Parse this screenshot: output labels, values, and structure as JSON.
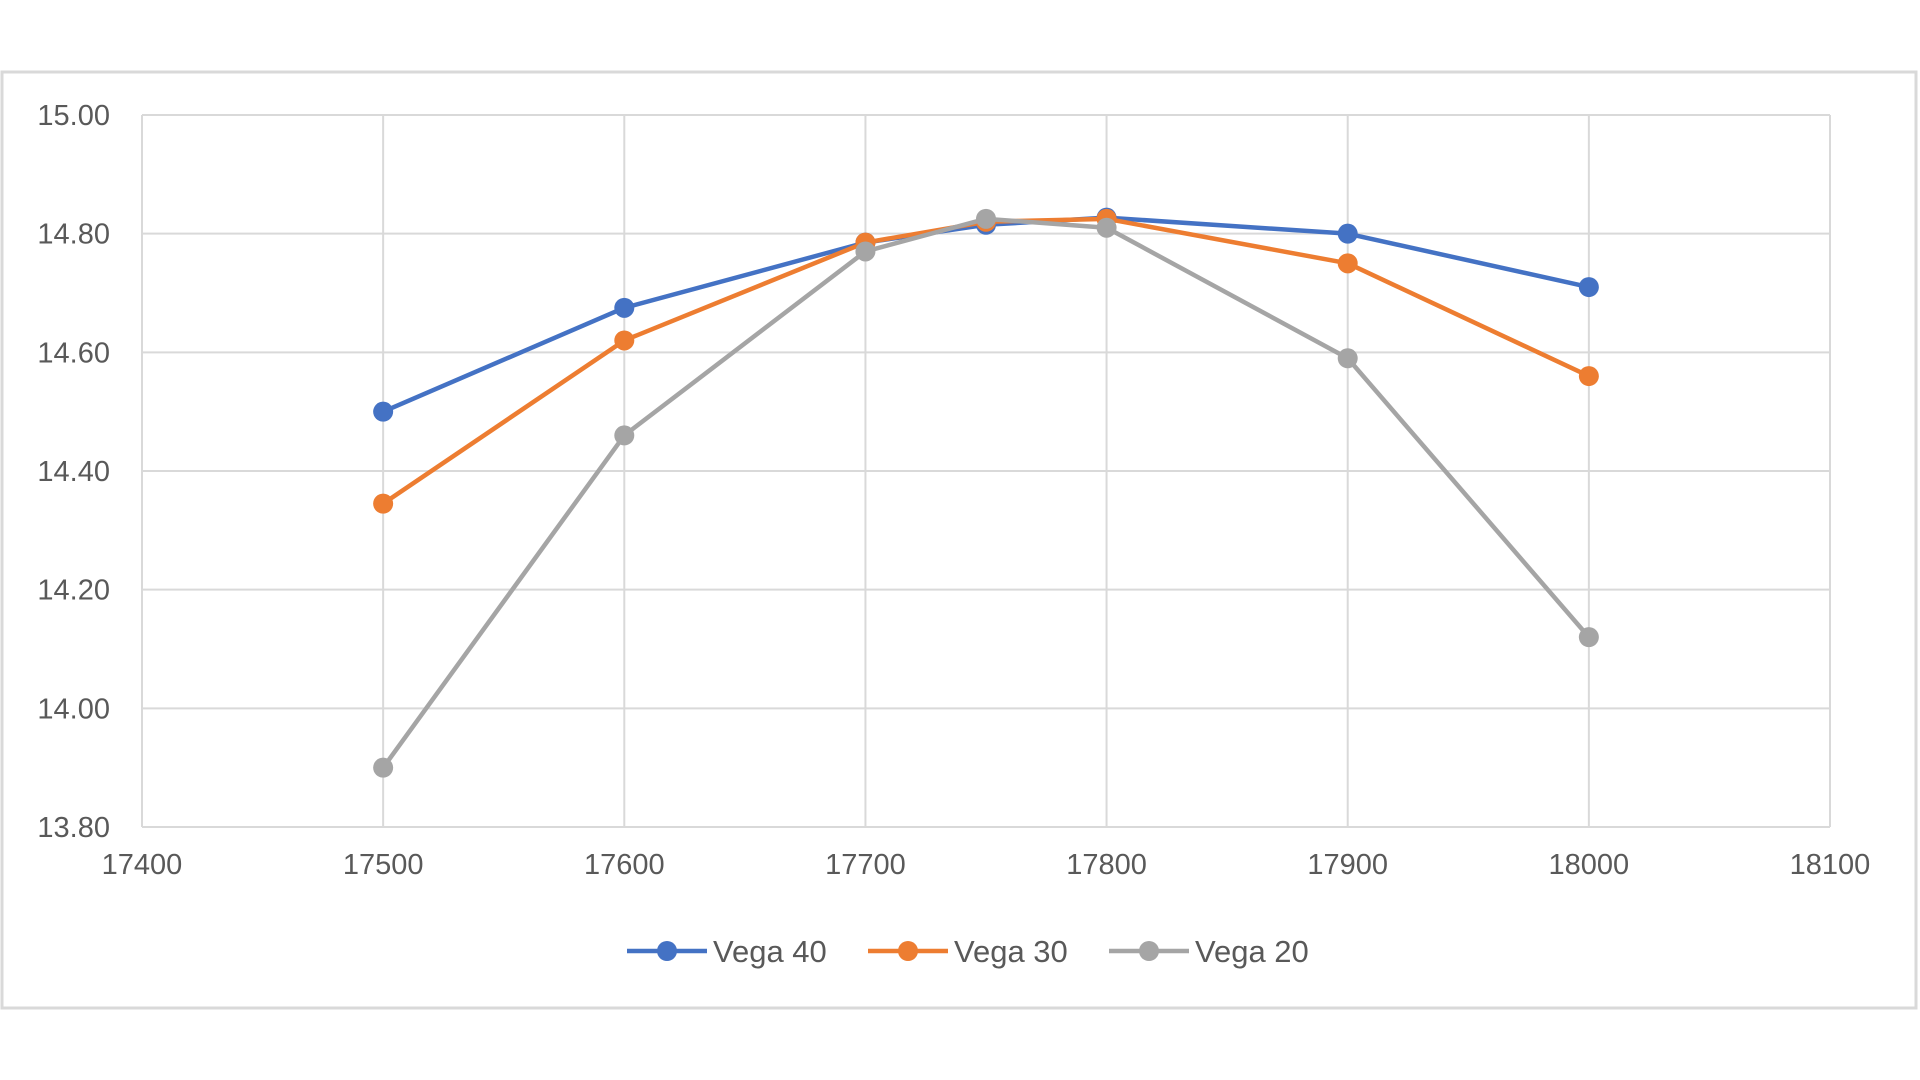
{
  "chart_data": {
    "type": "line",
    "title": "",
    "xlabel": "",
    "ylabel": "",
    "xlim": [
      17400,
      18100
    ],
    "ylim": [
      13.8,
      15.0
    ],
    "x_ticks": [
      "17400",
      "17500",
      "17600",
      "17700",
      "17800",
      "17900",
      "18000",
      "18100"
    ],
    "y_ticks": [
      "15.00",
      "14.80",
      "14.60",
      "14.40",
      "14.20",
      "14.00",
      "13.80"
    ],
    "grid": true,
    "legend_position": "bottom",
    "x": [
      17500,
      17600,
      17700,
      17750,
      17800,
      17900,
      18000
    ],
    "series": [
      {
        "name": "Vega 40",
        "color": "#4472C4",
        "values": [
          14.5,
          14.675,
          14.785,
          14.815,
          14.827,
          14.8,
          14.71
        ]
      },
      {
        "name": "Vega 30",
        "color": "#ED7D31",
        "values": [
          14.345,
          14.62,
          14.785,
          14.82,
          14.825,
          14.75,
          14.56
        ]
      },
      {
        "name": "Vega 20",
        "color": "#A5A5A5",
        "values": [
          13.9,
          14.46,
          14.77,
          14.825,
          14.81,
          14.59,
          14.12
        ]
      }
    ]
  }
}
